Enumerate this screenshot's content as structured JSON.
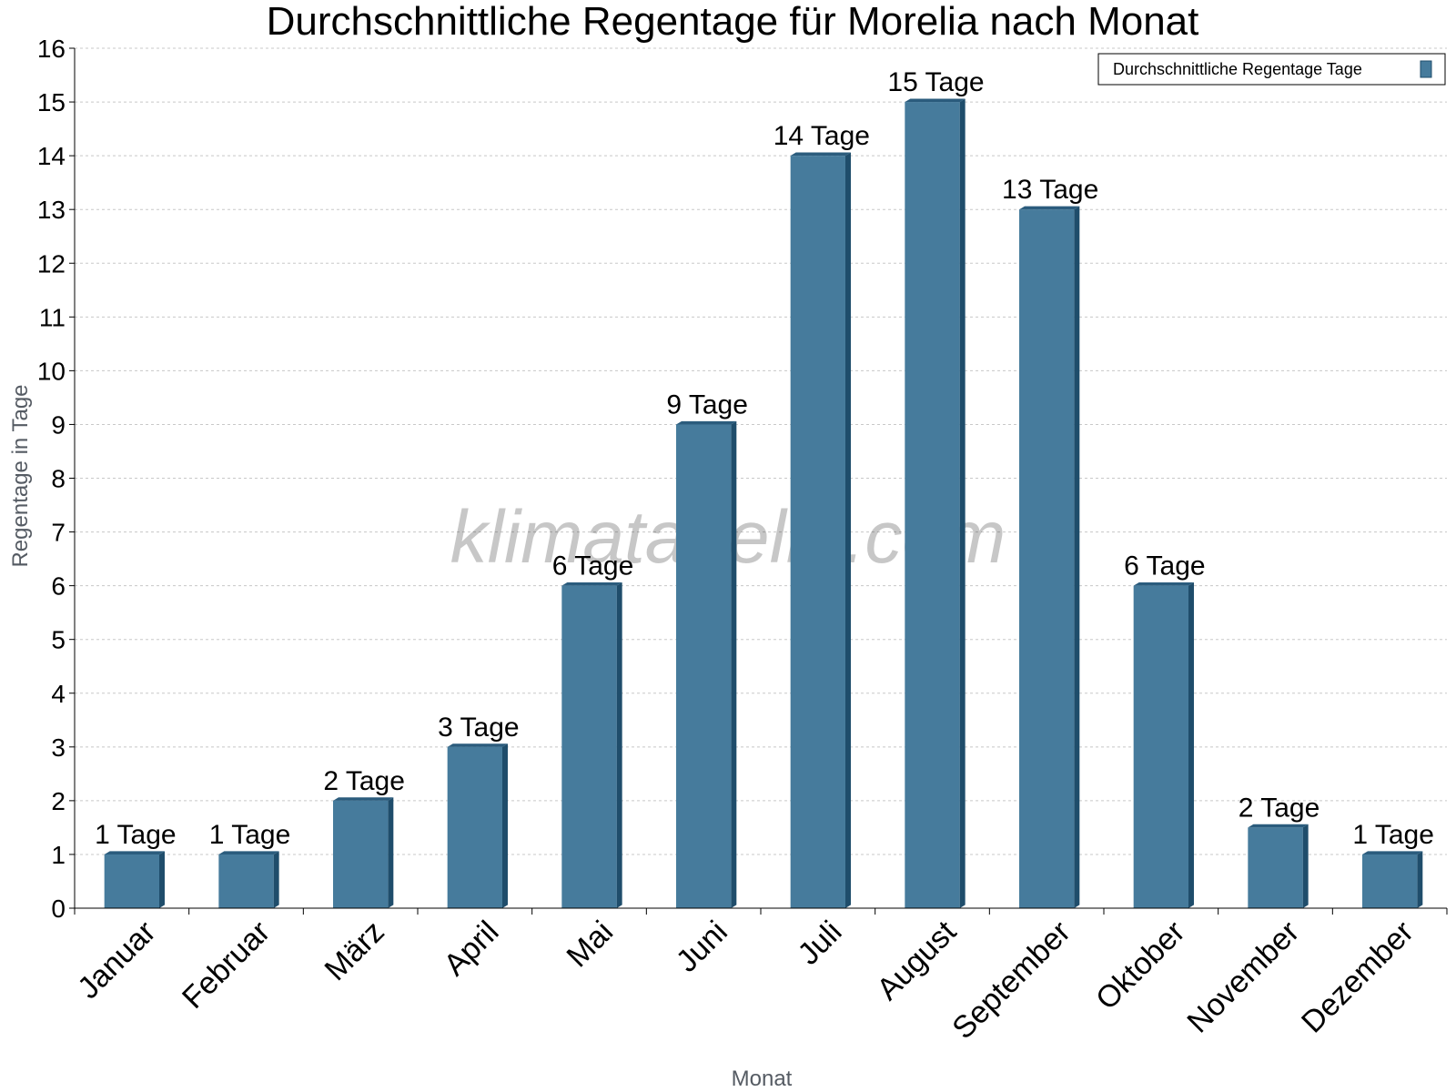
{
  "chart_data": {
    "type": "bar",
    "title": "Durchschnittliche Regentage für Morelia nach Monat",
    "xlabel": "Monat",
    "ylabel": "Regentage in Tage",
    "categories": [
      "Januar",
      "Februar",
      "März",
      "April",
      "Mai",
      "Juni",
      "Juli",
      "August",
      "September",
      "Oktober",
      "November",
      "Dezember"
    ],
    "series": [
      {
        "name": "Durchschnittliche Regentage Tage",
        "values": [
          1,
          1,
          2,
          3,
          6,
          9,
          14,
          15,
          13,
          6,
          1.5,
          1
        ]
      }
    ],
    "data_labels": [
      "1 Tage",
      "1 Tage",
      "2 Tage",
      "3 Tage",
      "6 Tage",
      "9 Tage",
      "14 Tage",
      "15 Tage",
      "13 Tage",
      "6 Tage",
      "2 Tage",
      "1 Tage"
    ],
    "ylim": [
      0,
      16
    ],
    "yticks": [
      "0",
      "1",
      "2",
      "3",
      "4",
      "5",
      "6",
      "7",
      "8",
      "9",
      "10",
      "11",
      "12",
      "13",
      "14",
      "15",
      "16"
    ],
    "grid": true,
    "legend_position": "top-right",
    "colors": {
      "bar_front": "#467b9c",
      "bar_side": "#1f4d6b",
      "bar_top": "#2b5c7d",
      "grid": "#c8c8c8"
    }
  },
  "watermark": "klimatabelle.com"
}
